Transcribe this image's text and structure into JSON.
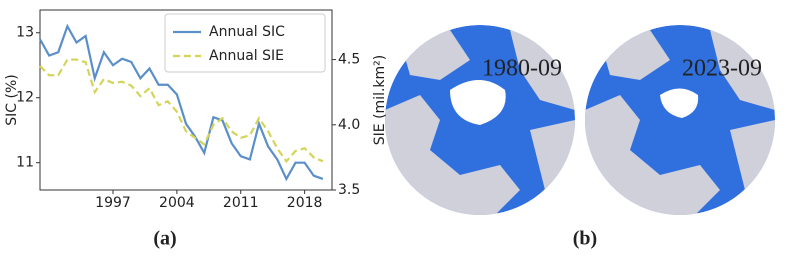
{
  "chart_data": {
    "type": "line",
    "x": [
      1989,
      1990,
      1991,
      1992,
      1993,
      1994,
      1995,
      1996,
      1997,
      1998,
      1999,
      2000,
      2001,
      2002,
      2003,
      2004,
      2005,
      2006,
      2007,
      2008,
      2009,
      2010,
      2011,
      2012,
      2013,
      2014,
      2015,
      2016,
      2017,
      2018,
      2019,
      2020
    ],
    "series": [
      {
        "name": "Annual SIC",
        "color": "#5b8fc9",
        "values": [
          12.9,
          12.65,
          12.7,
          13.1,
          12.85,
          12.95,
          12.3,
          12.7,
          12.5,
          12.6,
          12.55,
          12.3,
          12.45,
          12.2,
          12.2,
          12.05,
          11.6,
          11.4,
          11.15,
          11.7,
          11.65,
          11.3,
          11.1,
          11.05,
          11.6,
          11.25,
          11.05,
          10.75,
          11.0,
          11.0,
          10.8,
          10.75
        ]
      },
      {
        "name": "Annual SIE",
        "color": "#d4d45a",
        "axis": "y2",
        "dash": true,
        "values": [
          4.45,
          4.38,
          4.38,
          4.5,
          4.5,
          4.48,
          4.25,
          4.35,
          4.32,
          4.33,
          4.3,
          4.22,
          4.28,
          4.15,
          4.18,
          4.1,
          3.95,
          3.9,
          3.85,
          4.0,
          4.05,
          3.95,
          3.9,
          3.92,
          4.05,
          3.95,
          3.82,
          3.72,
          3.8,
          3.82,
          3.75,
          3.72
        ]
      }
    ],
    "xlim": [
      1989,
      2021
    ],
    "xticks": [
      1997,
      2004,
      2011,
      2018
    ],
    "ylim": [
      10.58,
      13.35
    ],
    "yticks": [
      11,
      12,
      13
    ],
    "y2lim": [
      3.5,
      4.88
    ],
    "y2ticks": [
      3.5,
      {
        "value": 4,
        "label": "4.0"
      },
      4.5
    ],
    "ylabel": "SIC (%)",
    "y2label": "SIE (mil.km²)",
    "legend": "upper right",
    "grid": false
  },
  "panels": {
    "a": "(a)",
    "b": "(b)"
  },
  "maps": [
    {
      "label": "1980-09"
    },
    {
      "label": "2023-09"
    }
  ]
}
